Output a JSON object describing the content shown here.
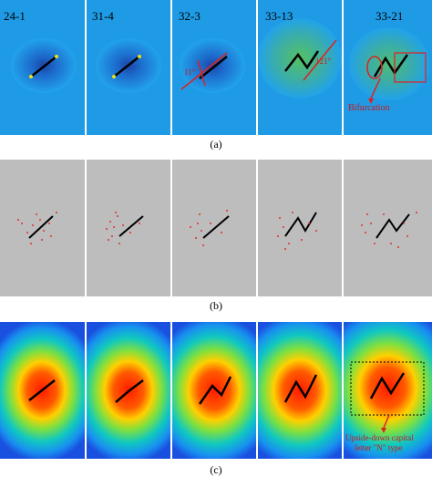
{
  "figure": {
    "captions": [
      "(a)",
      "(b)",
      "(c)"
    ],
    "row_a": {
      "stage_labels": [
        "24-1",
        "31-4",
        "32-3",
        "33-13",
        "33-21"
      ],
      "angle_label_1": "11°",
      "angle_label_2": "121°",
      "bifurcation_label": "Bifurcation"
    },
    "row_c": {
      "annotation_line1": "Upside-down capital",
      "annotation_line2": "letter \"N\" type"
    },
    "colors": {
      "row_a_background": "#1b8fe0",
      "row_b_background": "#bdbdbd",
      "annotation_red": "#e02020",
      "crack_black": "#000000"
    }
  }
}
